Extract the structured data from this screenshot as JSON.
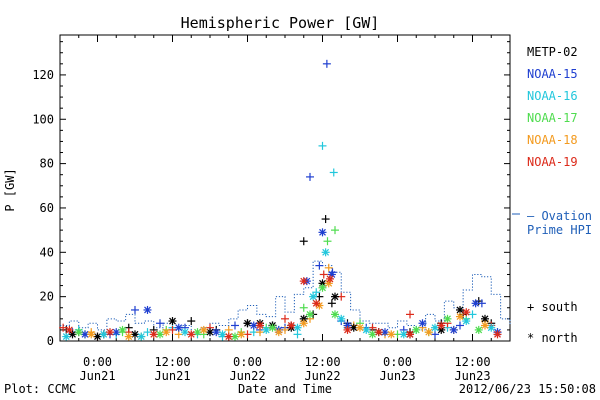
{
  "chart_data": {
    "type": "scatter",
    "title": "Hemispheric Power [GW]",
    "xlabel": "Date and Time",
    "ylabel": "P [GW]",
    "xlim": [
      -6,
      66
    ],
    "ylim": [
      0,
      138
    ],
    "yticks": [
      0,
      20,
      40,
      60,
      80,
      100,
      120
    ],
    "x_unit": "hours from 2012/06/21 00:00",
    "xtick_labels": [
      {
        "x": 0,
        "time": "0:00",
        "date": "Jun21"
      },
      {
        "x": 12,
        "time": "12:00",
        "date": "Jun21"
      },
      {
        "x": 24,
        "time": "0:00",
        "date": "Jun22"
      },
      {
        "x": 36,
        "time": "12:00",
        "date": "Jun22"
      },
      {
        "x": 48,
        "time": "0:00",
        "date": "Jun23"
      },
      {
        "x": 60,
        "time": "12:00",
        "date": "Jun23"
      }
    ],
    "legend": {
      "placement": "right",
      "entries": [
        {
          "name": "METP-02",
          "color": "#000000"
        },
        {
          "name": "NOAA-15",
          "color": "#1f3fd0"
        },
        {
          "name": "NOAA-16",
          "color": "#22c7dc"
        },
        {
          "name": "NOAA-17",
          "color": "#4fdc4f"
        },
        {
          "name": "NOAA-18",
          "color": "#f39a1e"
        },
        {
          "name": "NOAA-19",
          "color": "#dc2a1a"
        }
      ],
      "ovation_line1": "— Ovation",
      "ovation_line2": "Prime HPI",
      "ovation_color": "#1f5fb8",
      "south_label": "+ south",
      "north_label": "* north"
    },
    "ovation_hpi": {
      "x": [
        -6,
        -4.5,
        -3,
        -1.5,
        0,
        1.5,
        3,
        4.5,
        6,
        7.5,
        9,
        10.5,
        12,
        13.5,
        15,
        16.5,
        18,
        19.5,
        21,
        22.5,
        24,
        25.5,
        27,
        28.5,
        30,
        31.5,
        33,
        34.5,
        36,
        37.5,
        39,
        40.5,
        42,
        43.5,
        45,
        46.5,
        48,
        49.5,
        51,
        52.5,
        54,
        55.5,
        57,
        58.5,
        60,
        61.5,
        63,
        64.5,
        66
      ],
      "y": [
        7,
        9,
        6,
        8,
        5,
        10,
        9,
        12,
        8,
        9,
        6,
        8,
        5,
        7,
        4,
        6,
        8,
        7,
        10,
        14,
        16,
        12,
        11,
        20,
        13,
        21,
        24,
        36,
        34,
        31,
        22,
        14,
        9,
        8,
        8,
        6,
        9,
        7,
        5,
        12,
        9,
        18,
        15,
        23,
        30,
        29,
        21,
        10,
        7
      ]
    },
    "series": [
      {
        "name": "METP-02",
        "color": "#000000",
        "marker": "+",
        "x": [
          -5,
          -3,
          1,
          5,
          9,
          15,
          19,
          24,
          28,
          31,
          33,
          34.5,
          35.5,
          36.5,
          37.5,
          40,
          44,
          50,
          55,
          58.5,
          61,
          63
        ],
        "y": [
          5,
          4,
          3,
          6,
          5,
          9,
          5,
          8,
          7,
          7,
          45,
          12,
          20,
          55,
          17,
          8,
          5,
          4,
          8,
          12,
          18,
          8
        ]
      },
      {
        "name": "NOAA-15",
        "color": "#1f3fd0",
        "marker": "+",
        "x": [
          -4,
          2,
          6,
          10,
          14,
          18,
          22,
          26,
          30,
          34,
          35.5,
          36.7,
          37.6,
          39,
          43,
          49,
          54,
          58,
          61.5
        ],
        "y": [
          4,
          3,
          14,
          8,
          6,
          4,
          7,
          5,
          6,
          74,
          34,
          125,
          31,
          9,
          6,
          5,
          3,
          7,
          17
        ]
      },
      {
        "name": "NOAA-16",
        "color": "#22c7dc",
        "marker": "+",
        "x": [
          -3,
          3,
          8,
          12,
          16,
          20,
          25,
          29,
          32,
          35,
          36,
          37.8,
          40,
          45,
          51,
          56,
          60,
          64
        ],
        "y": [
          5,
          3,
          4,
          6,
          3,
          2,
          4,
          5,
          3,
          22,
          88,
          76,
          6,
          4,
          5,
          6,
          12,
          4
        ]
      },
      {
        "name": "NOAA-17",
        "color": "#4fdc4f",
        "marker": "+",
        "x": [
          -2,
          4,
          11,
          17,
          23,
          27,
          33,
          36.8,
          38,
          42,
          48,
          53,
          59
        ],
        "y": [
          3,
          4,
          5,
          3,
          4,
          6,
          15,
          45,
          50,
          8,
          3,
          4,
          10
        ]
      },
      {
        "name": "NOAA-18",
        "color": "#f39a1e",
        "marker": "+",
        "x": [
          -1,
          7,
          13,
          21,
          26,
          30,
          34,
          37,
          41,
          46,
          52,
          57,
          62
        ],
        "y": [
          4,
          2,
          3,
          5,
          4,
          5,
          10,
          33,
          7,
          3,
          6,
          5,
          9
        ]
      },
      {
        "name": "NOAA-19",
        "color": "#dc2a1a",
        "marker": "+",
        "x": [
          -5.5,
          0,
          5,
          12,
          18,
          24,
          30,
          36.2,
          39,
          44,
          50,
          56,
          63
        ],
        "y": [
          6,
          2,
          4,
          5,
          6,
          3,
          10,
          30,
          20,
          6,
          12,
          8,
          7
        ]
      },
      {
        "name": "METP-02",
        "color": "#000000",
        "marker": "*",
        "x": [
          -4,
          0,
          6,
          12,
          18,
          24,
          26,
          28,
          31,
          33,
          36,
          38,
          41,
          45,
          50,
          55,
          58,
          62
        ],
        "y": [
          3,
          2,
          3,
          9,
          4,
          8,
          8,
          7,
          6,
          10,
          26,
          20,
          6,
          4,
          3,
          5,
          14,
          10
        ]
      },
      {
        "name": "NOAA-15",
        "color": "#1f3fd0",
        "marker": "*",
        "x": [
          -2,
          3,
          8,
          13,
          19,
          25,
          29,
          33.5,
          36,
          37.5,
          40,
          46,
          52,
          57,
          60.5,
          64
        ],
        "y": [
          3,
          4,
          14,
          6,
          4,
          7,
          5,
          27,
          49,
          30,
          7,
          4,
          8,
          5,
          17,
          4
        ]
      },
      {
        "name": "NOAA-16",
        "color": "#22c7dc",
        "marker": "*",
        "x": [
          -5,
          1,
          7,
          14,
          20,
          27,
          32,
          34.5,
          36.5,
          39,
          43,
          49,
          54,
          59,
          63
        ],
        "y": [
          2,
          3,
          2,
          4,
          3,
          5,
          6,
          20,
          40,
          10,
          5,
          3,
          6,
          9,
          6
        ]
      },
      {
        "name": "NOAA-17",
        "color": "#4fdc4f",
        "marker": "*",
        "x": [
          -3,
          4,
          10,
          16,
          22,
          28,
          34,
          36,
          38,
          44,
          51,
          56,
          61
        ],
        "y": [
          4,
          5,
          3,
          4,
          2,
          6,
          12,
          24,
          12,
          3,
          5,
          10,
          5
        ]
      },
      {
        "name": "NOAA-18",
        "color": "#f39a1e",
        "marker": "*",
        "x": [
          -1,
          5,
          11,
          17,
          23,
          29,
          33,
          35.5,
          37,
          42,
          47,
          53,
          58,
          62
        ],
        "y": [
          3,
          2,
          4,
          5,
          3,
          4,
          8,
          16,
          26,
          6,
          3,
          4,
          11,
          7
        ]
      },
      {
        "name": "NOAA-19",
        "color": "#dc2a1a",
        "marker": "*",
        "x": [
          -4.5,
          2,
          9,
          15,
          21,
          26,
          31,
          33,
          35,
          37.2,
          40,
          45,
          50,
          55,
          59,
          64
        ],
        "y": [
          5,
          4,
          3,
          3,
          2,
          7,
          7,
          27,
          17,
          28,
          5,
          4,
          3,
          7,
          13,
          3
        ]
      }
    ]
  },
  "footer": {
    "plot_credit": "Plot: CCMC",
    "timestamp": "2012/06/23 15:50:08"
  }
}
